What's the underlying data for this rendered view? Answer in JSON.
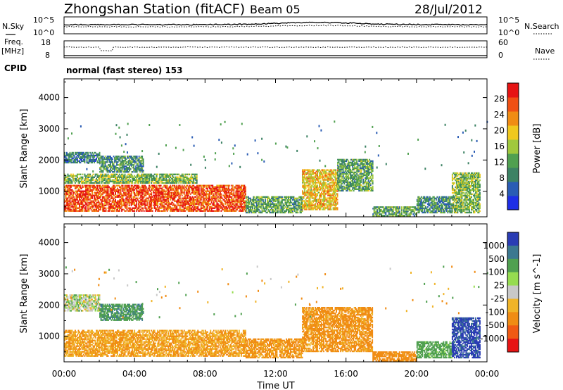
{
  "header": {
    "station": "Zhongshan Station (fitACF)",
    "beam": "Beam 05",
    "date": "28/Jul/2012"
  },
  "nsky_panel": {
    "left_label": "N.Sky",
    "right_label": "N.Search",
    "tick_top": "10^5",
    "tick_bottom": "10^0"
  },
  "freq_panel": {
    "left_label_line1": "Freq.",
    "left_label_line2": "[MHz]",
    "left_tick_top": "18",
    "left_tick_bottom": "8",
    "right_label": "Nave",
    "right_tick_top": "60",
    "right_tick_bottom": "0"
  },
  "cpid": {
    "label": "CPID",
    "value": "normal (fast stereo) 153"
  },
  "chart_data": [
    {
      "type": "heatmap",
      "quantity": "Power",
      "ylabel": "Slant Range [km]",
      "xlabel": "Time UT",
      "x_ticks": [
        "00:00",
        "04:00",
        "08:00",
        "12:00",
        "16:00",
        "20:00",
        "00:00"
      ],
      "x_range_hours": [
        0,
        24
      ],
      "y_ticks": [
        "1000",
        "2000",
        "3000",
        "4000"
      ],
      "y_range_km": [
        180,
        4600
      ],
      "colorbar": {
        "label": "Power [dB]",
        "ticks": [
          "4",
          "8",
          "12",
          "16",
          "20",
          "24",
          "28"
        ],
        "range": [
          0,
          32
        ]
      },
      "regions": [
        {
          "t0": 0.0,
          "t1": 10.3,
          "r0": 350,
          "r1": 1200,
          "value": 27
        },
        {
          "t0": 0.0,
          "t1": 7.5,
          "r0": 1250,
          "r1": 1550,
          "value": 14
        },
        {
          "t0": 0.0,
          "t1": 2.0,
          "r0": 1900,
          "r1": 2250,
          "value": 8
        },
        {
          "t0": 2.0,
          "t1": 4.5,
          "r0": 1600,
          "r1": 2100,
          "value": 10
        },
        {
          "t0": 10.3,
          "t1": 13.5,
          "r0": 300,
          "r1": 800,
          "value": 12
        },
        {
          "t0": 13.5,
          "t1": 15.5,
          "r0": 400,
          "r1": 1700,
          "value": 20
        },
        {
          "t0": 15.5,
          "t1": 17.5,
          "r0": 1000,
          "r1": 2000,
          "value": 12
        },
        {
          "t0": 17.5,
          "t1": 20.0,
          "r0": 200,
          "r1": 500,
          "value": 12
        },
        {
          "t0": 20.0,
          "t1": 22.0,
          "r0": 300,
          "r1": 800,
          "value": 10
        },
        {
          "t0": 22.0,
          "t1": 23.6,
          "r0": 300,
          "r1": 1600,
          "value": 14
        }
      ]
    },
    {
      "type": "heatmap",
      "quantity": "Velocity",
      "ylabel": "Slant Range [km]",
      "xlabel": "Time UT",
      "x_ticks": [
        "00:00",
        "04:00",
        "08:00",
        "12:00",
        "16:00",
        "20:00",
        "00:00"
      ],
      "x_range_hours": [
        0,
        24
      ],
      "y_ticks": [
        "1000",
        "2000",
        "3000",
        "4000"
      ],
      "y_range_km": [
        180,
        4600
      ],
      "colorbar": {
        "label": "Velocity [m s^-1]",
        "ticks": [
          "1000",
          "500",
          "100",
          "25",
          "-25",
          "-100",
          "-500",
          "-1000"
        ]
      },
      "regions": [
        {
          "t0": 0.0,
          "t1": 10.3,
          "r0": 350,
          "r1": 1200,
          "value": -100
        },
        {
          "t0": 0.0,
          "t1": 2.0,
          "r0": 1800,
          "r1": 2300,
          "value": 0
        },
        {
          "t0": 2.0,
          "t1": 4.5,
          "r0": 1500,
          "r1": 2000,
          "value": 80
        },
        {
          "t0": 10.3,
          "t1": 13.5,
          "r0": 300,
          "r1": 900,
          "value": -150
        },
        {
          "t0": 13.5,
          "t1": 17.5,
          "r0": 500,
          "r1": 1900,
          "value": -150
        },
        {
          "t0": 17.5,
          "t1": 20.0,
          "r0": 200,
          "r1": 500,
          "value": -200
        },
        {
          "t0": 20.0,
          "t1": 22.0,
          "r0": 300,
          "r1": 800,
          "value": 60
        },
        {
          "t0": 22.0,
          "t1": 23.6,
          "r0": 300,
          "r1": 1600,
          "value": 700
        }
      ]
    }
  ],
  "colors": {
    "power_scale": [
      "#1e2ee6",
      "#2a5cb4",
      "#3c8264",
      "#50a050",
      "#a0c83c",
      "#f0c81e",
      "#f08c14",
      "#f05014",
      "#e61414"
    ],
    "velocity_scale": [
      "#2a3cb4",
      "#3c7890",
      "#50a050",
      "#96dc50",
      "#c8c8c8",
      "#f0b428",
      "#f08c14",
      "#f05a14",
      "#e61414"
    ]
  }
}
